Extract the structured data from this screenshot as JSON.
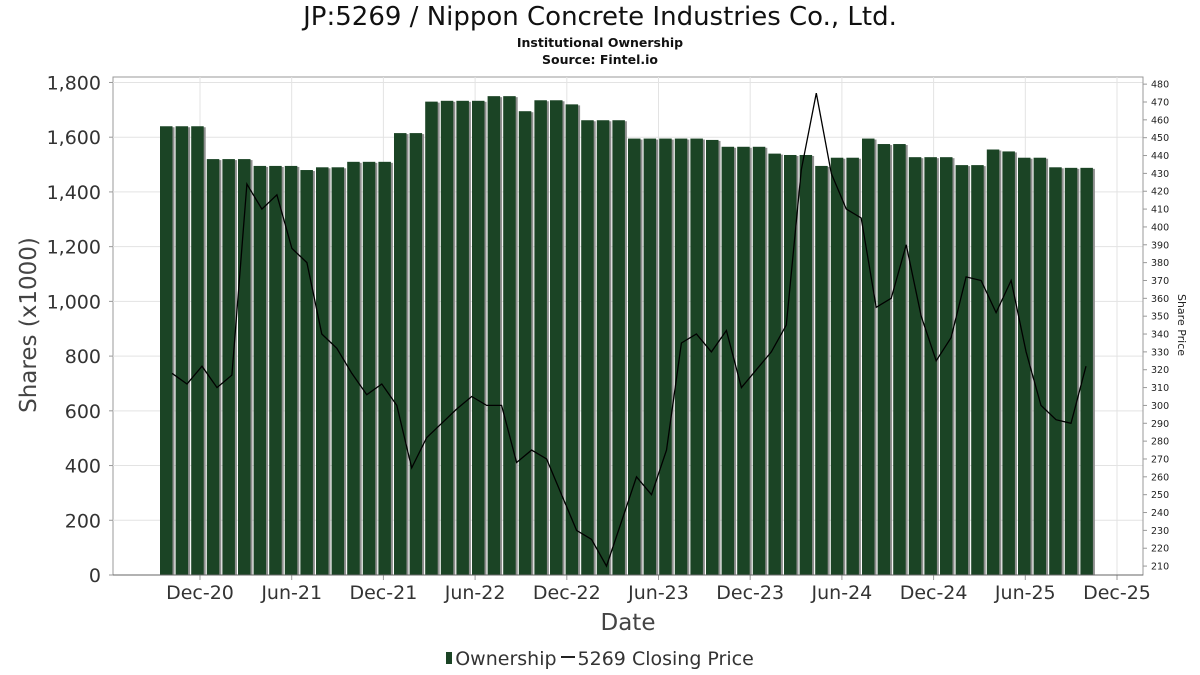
{
  "chart_data": {
    "type": "bar",
    "title": "JP:5269 / Nippon Concrete Industries Co., Ltd.",
    "subtitle": "Institutional Ownership",
    "source": "Source: Fintel.io",
    "xlabel": "Date",
    "ylabel": "Shares (x1000)",
    "y2label": "Share Price",
    "x_tick_labels": [
      "Dec-20",
      "Jun-21",
      "Dec-21",
      "Jun-22",
      "Dec-22",
      "Jun-23",
      "Dec-23",
      "Jun-24",
      "Dec-24",
      "Jun-25",
      "Dec-25"
    ],
    "y_tick_labels": [
      "0",
      "200",
      "400",
      "600",
      "800",
      "1,000",
      "1,200",
      "1,400",
      "1,600",
      "1,800"
    ],
    "y2_tick_labels": [
      "210",
      "220",
      "230",
      "240",
      "250",
      "260",
      "270",
      "280",
      "290",
      "300",
      "310",
      "320",
      "330",
      "340",
      "350",
      "360",
      "370",
      "380",
      "390",
      "400",
      "410",
      "420",
      "430",
      "440",
      "450",
      "460",
      "470",
      "480"
    ],
    "ylim": [
      0,
      1820
    ],
    "y2lim": [
      205,
      484
    ],
    "grid": true,
    "legend_position": "bottom",
    "series": [
      {
        "name": "Ownership",
        "type": "bar",
        "color": "#1b4425",
        "values": [
          1640,
          1640,
          1640,
          1520,
          1520,
          1520,
          1495,
          1495,
          1495,
          1480,
          1490,
          1490,
          1510,
          1510,
          1510,
          1615,
          1615,
          1730,
          1733,
          1733,
          1733,
          1750,
          1750,
          1695,
          1735,
          1735,
          1720,
          1662,
          1662,
          1662,
          1595,
          1595,
          1595,
          1595,
          1595,
          1590,
          1565,
          1565,
          1565,
          1540,
          1535,
          1535,
          1495,
          1525,
          1525,
          1595,
          1575,
          1575,
          1527,
          1527,
          1527,
          1498,
          1498,
          1555,
          1548,
          1525,
          1525,
          1490,
          1488,
          1488
        ]
      },
      {
        "name": "5269 Closing Price",
        "type": "line",
        "color": "#000000",
        "points": [
          [
            0,
            318
          ],
          [
            1,
            312
          ],
          [
            2,
            322
          ],
          [
            3,
            310
          ],
          [
            4,
            317
          ],
          [
            5,
            424
          ],
          [
            6,
            410
          ],
          [
            7,
            418
          ],
          [
            8,
            388
          ],
          [
            9,
            380
          ],
          [
            10,
            340
          ],
          [
            11,
            332
          ],
          [
            12,
            318
          ],
          [
            13,
            306
          ],
          [
            14,
            312
          ],
          [
            15,
            300
          ],
          [
            16,
            265
          ],
          [
            17,
            282
          ],
          [
            18,
            290
          ],
          [
            19,
            298
          ],
          [
            20,
            305
          ],
          [
            21,
            300
          ],
          [
            22,
            300
          ],
          [
            23,
            268
          ],
          [
            24,
            275
          ],
          [
            25,
            270
          ],
          [
            26,
            250
          ],
          [
            27,
            230
          ],
          [
            28,
            225
          ],
          [
            29,
            210
          ],
          [
            30,
            235
          ],
          [
            31,
            260
          ],
          [
            32,
            250
          ],
          [
            33,
            275
          ],
          [
            34,
            335
          ],
          [
            35,
            340
          ],
          [
            36,
            330
          ],
          [
            37,
            342
          ],
          [
            38,
            310
          ],
          [
            39,
            320
          ],
          [
            40,
            330
          ],
          [
            41,
            345
          ],
          [
            42,
            432
          ],
          [
            43,
            475
          ],
          [
            44,
            430
          ],
          [
            45,
            410
          ],
          [
            46,
            405
          ],
          [
            47,
            355
          ],
          [
            48,
            360
          ],
          [
            49,
            390
          ],
          [
            50,
            350
          ],
          [
            51,
            325
          ],
          [
            52,
            338
          ],
          [
            53,
            372
          ],
          [
            54,
            370
          ],
          [
            55,
            352
          ],
          [
            56,
            370
          ],
          [
            57,
            330
          ],
          [
            58,
            300
          ],
          [
            59,
            292
          ],
          [
            60,
            290
          ],
          [
            61,
            322
          ]
        ]
      }
    ]
  },
  "legend": {
    "ownership_label": "Ownership",
    "price_label": "5269 Closing Price"
  }
}
